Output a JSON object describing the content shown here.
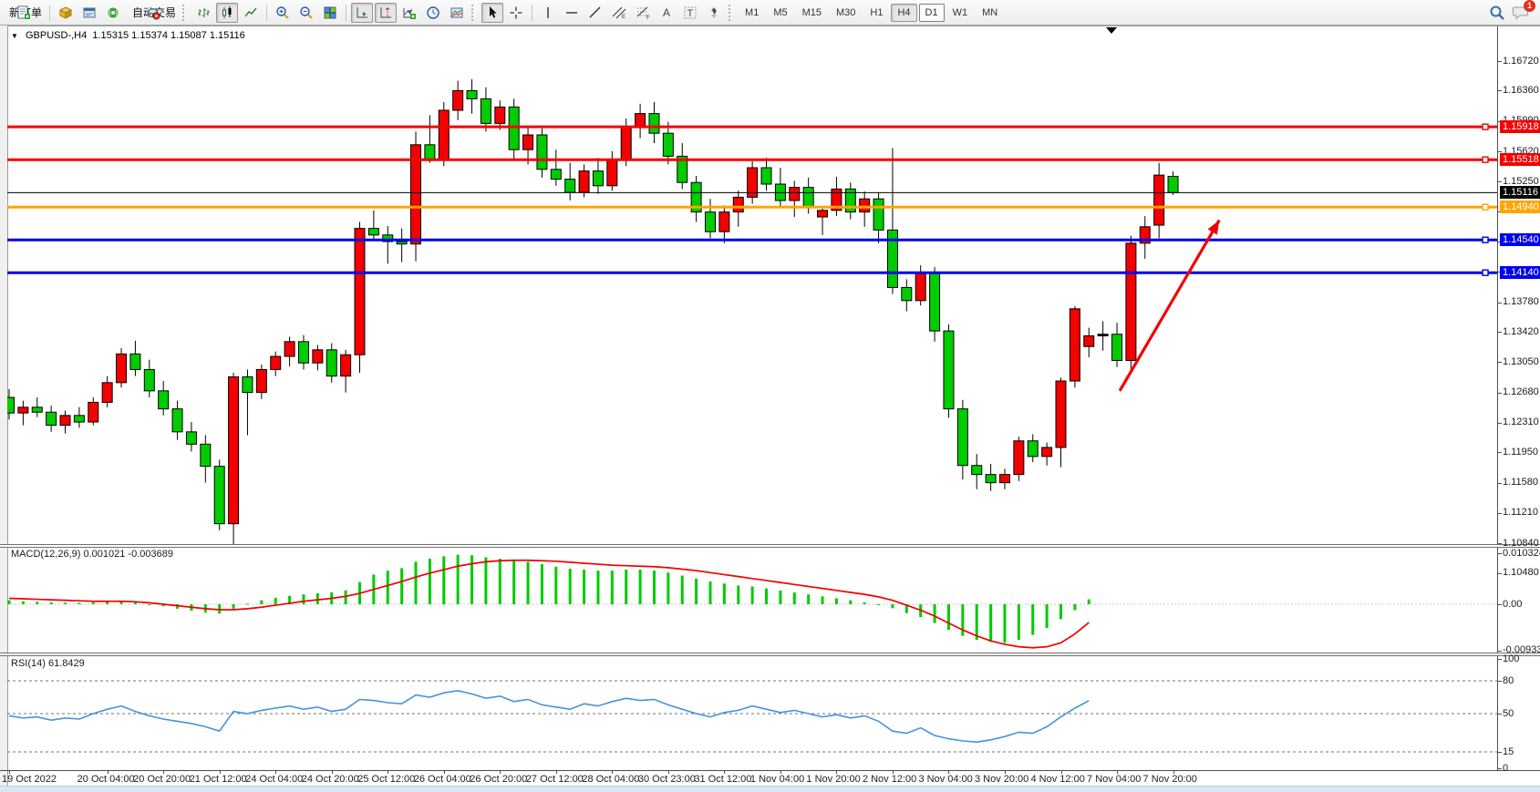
{
  "toolbar": {
    "new_order_label": "新订单",
    "autotrade_label": "自动交易",
    "timeframes": [
      "M1",
      "M5",
      "M15",
      "M30",
      "H1",
      "H4",
      "D1",
      "W1",
      "MN"
    ],
    "active_timeframe": "H4",
    "boxed_timeframe": "D1",
    "chat_badge": "1"
  },
  "chart": {
    "title": "GBPUSD-,H4",
    "ohlc_text": "1.15315 1.15374 1.15087 1.15116",
    "price_ticks": [
      "1.16720",
      "1.16360",
      "1.15990",
      "1.15620",
      "1.15250",
      "1.14890",
      "1.14520",
      "1.14150",
      "1.13780",
      "1.13420",
      "1.13050",
      "1.12680",
      "1.12310",
      "1.11950",
      "1.11580",
      "1.11210",
      "1.10840",
      "1.10480"
    ],
    "time_labels": {
      "texts": [
        "19 Oct 2022",
        "20 Oct 04:00",
        "20 Oct 20:00",
        "21 Oct 12:00",
        "24 Oct 04:00",
        "24 Oct 20:00",
        "25 Oct 12:00",
        "26 Oct 04:00",
        "26 Oct 20:00",
        "27 Oct 12:00",
        "28 Oct 04:00",
        "30 Oct 23:00",
        "31 Oct 12:00",
        "1 Nov 04:00",
        "1 Nov 20:00",
        "2 Nov 12:00",
        "3 Nov 04:00",
        "3 Nov 20:00",
        "4 Nov 12:00",
        "7 Nov 04:00",
        "7 Nov 20:00"
      ],
      "bars": [
        0,
        7,
        11,
        15,
        19,
        23,
        27,
        31,
        35,
        39,
        43,
        47,
        51,
        55,
        59,
        63,
        67,
        71,
        75,
        79,
        83
      ]
    },
    "hlines": [
      {
        "price": 1.15918,
        "label": "1.15918",
        "color": "#f40000",
        "thick": 3
      },
      {
        "price": 1.15518,
        "label": "1.15518",
        "color": "#f40000",
        "thick": 3
      },
      {
        "price": 1.15116,
        "label": "1.15116",
        "color": "#000000",
        "thick": 1
      },
      {
        "price": 1.1494,
        "label": "1.14940",
        "color": "#ffa400",
        "thick": 3
      },
      {
        "price": 1.1454,
        "label": "1.14540",
        "color": "#0000f0",
        "thick": 3
      },
      {
        "price": 1.1414,
        "label": "1.14140",
        "color": "#0000f0",
        "thick": 3
      }
    ],
    "candles": [
      [
        1.1262,
        1.1272,
        1.1235,
        1.1243
      ],
      [
        1.1243,
        1.1258,
        1.1228,
        1.125
      ],
      [
        1.125,
        1.1262,
        1.1238,
        1.1244
      ],
      [
        1.1244,
        1.1252,
        1.122,
        1.1228
      ],
      [
        1.1228,
        1.1246,
        1.1218,
        1.124
      ],
      [
        1.124,
        1.125,
        1.1225,
        1.1232
      ],
      [
        1.1232,
        1.1262,
        1.1228,
        1.1256
      ],
      [
        1.1256,
        1.1288,
        1.125,
        1.128
      ],
      [
        1.128,
        1.1322,
        1.1274,
        1.1315
      ],
      [
        1.1315,
        1.1331,
        1.1288,
        1.1296
      ],
      [
        1.1296,
        1.1308,
        1.1262,
        1.127
      ],
      [
        1.127,
        1.1282,
        1.124,
        1.1248
      ],
      [
        1.1248,
        1.1258,
        1.121,
        1.122
      ],
      [
        1.122,
        1.1232,
        1.1196,
        1.1205
      ],
      [
        1.1205,
        1.1216,
        1.1158,
        1.1178
      ],
      [
        1.1178,
        1.1186,
        1.11,
        1.1108
      ],
      [
        1.1108,
        1.1292,
        1.106,
        1.1287
      ],
      [
        1.1287,
        1.1296,
        1.1216,
        1.1268
      ],
      [
        1.1268,
        1.1302,
        1.126,
        1.1296
      ],
      [
        1.1296,
        1.1318,
        1.1288,
        1.1312
      ],
      [
        1.1312,
        1.1336,
        1.13,
        1.133
      ],
      [
        1.133,
        1.1338,
        1.1296,
        1.1304
      ],
      [
        1.1304,
        1.1326,
        1.1295,
        1.132
      ],
      [
        1.132,
        1.1328,
        1.128,
        1.1288
      ],
      [
        1.1288,
        1.132,
        1.1268,
        1.1314
      ],
      [
        1.1314,
        1.1476,
        1.1292,
        1.1468
      ],
      [
        1.1468,
        1.149,
        1.1454,
        1.146
      ],
      [
        1.146,
        1.1471,
        1.1425,
        1.1452
      ],
      [
        1.1452,
        1.1468,
        1.1427,
        1.1449
      ],
      [
        1.1449,
        1.1586,
        1.1428,
        1.157
      ],
      [
        1.157,
        1.1606,
        1.1548,
        1.1552
      ],
      [
        1.1552,
        1.1622,
        1.1544,
        1.1612
      ],
      [
        1.1612,
        1.1648,
        1.16,
        1.1636
      ],
      [
        1.1636,
        1.165,
        1.1608,
        1.1626
      ],
      [
        1.1626,
        1.164,
        1.1586,
        1.1596
      ],
      [
        1.1596,
        1.1624,
        1.1588,
        1.1616
      ],
      [
        1.1616,
        1.1626,
        1.1552,
        1.1564
      ],
      [
        1.1564,
        1.1592,
        1.1546,
        1.1582
      ],
      [
        1.1582,
        1.159,
        1.153,
        1.154
      ],
      [
        1.154,
        1.1564,
        1.152,
        1.1528
      ],
      [
        1.1528,
        1.1548,
        1.1502,
        1.1512
      ],
      [
        1.1512,
        1.1546,
        1.1506,
        1.1538
      ],
      [
        1.1538,
        1.1554,
        1.151,
        1.152
      ],
      [
        1.152,
        1.1562,
        1.1514,
        1.1552
      ],
      [
        1.1552,
        1.1602,
        1.1544,
        1.1592
      ],
      [
        1.1592,
        1.162,
        1.1578,
        1.1608
      ],
      [
        1.1608,
        1.1622,
        1.1572,
        1.1584
      ],
      [
        1.1584,
        1.1598,
        1.1546,
        1.1556
      ],
      [
        1.1556,
        1.1572,
        1.1516,
        1.1524
      ],
      [
        1.1524,
        1.1532,
        1.1476,
        1.1488
      ],
      [
        1.1488,
        1.1504,
        1.1456,
        1.1464
      ],
      [
        1.1464,
        1.1496,
        1.145,
        1.1488
      ],
      [
        1.1488,
        1.1514,
        1.147,
        1.1506
      ],
      [
        1.1506,
        1.155,
        1.1498,
        1.1542
      ],
      [
        1.1542,
        1.1554,
        1.1514,
        1.1522
      ],
      [
        1.1522,
        1.1542,
        1.1494,
        1.1502
      ],
      [
        1.1502,
        1.1526,
        1.1482,
        1.1518
      ],
      [
        1.1518,
        1.153,
        1.1486,
        1.1494
      ],
      [
        1.1482,
        1.1492,
        1.146,
        1.149
      ],
      [
        1.149,
        1.1531,
        1.1483,
        1.1516
      ],
      [
        1.1516,
        1.1524,
        1.1479,
        1.1488
      ],
      [
        1.1488,
        1.1513,
        1.147,
        1.1504
      ],
      [
        1.1504,
        1.1512,
        1.145,
        1.1466
      ],
      [
        1.1466,
        1.1566,
        1.1388,
        1.1396
      ],
      [
        1.1396,
        1.1406,
        1.1367,
        1.138
      ],
      [
        1.138,
        1.1423,
        1.1374,
        1.1413
      ],
      [
        1.1413,
        1.1421,
        1.133,
        1.1343
      ],
      [
        1.1343,
        1.1351,
        1.1237,
        1.1248
      ],
      [
        1.1248,
        1.1259,
        1.1162,
        1.1179
      ],
      [
        1.1179,
        1.1193,
        1.115,
        1.1168
      ],
      [
        1.1168,
        1.1181,
        1.1148,
        1.1158
      ],
      [
        1.1158,
        1.1175,
        1.115,
        1.1168
      ],
      [
        1.1168,
        1.1214,
        1.116,
        1.1209
      ],
      [
        1.1209,
        1.1217,
        1.1183,
        1.119
      ],
      [
        1.119,
        1.1207,
        1.1179,
        1.1201
      ],
      [
        1.1201,
        1.1286,
        1.1177,
        1.1282
      ],
      [
        1.1282,
        1.1373,
        1.1274,
        1.137
      ],
      [
        1.1324,
        1.1347,
        1.1311,
        1.1337
      ],
      [
        1.1337,
        1.1355,
        1.1319,
        1.1339
      ],
      [
        1.1339,
        1.1353,
        1.1299,
        1.1307
      ],
      [
        1.1307,
        1.1459,
        1.1294,
        1.145
      ],
      [
        1.145,
        1.1483,
        1.1431,
        1.147
      ],
      [
        1.1472,
        1.1548,
        1.1456,
        1.1533
      ],
      [
        1.15315,
        1.15374,
        1.15087,
        1.15116
      ]
    ],
    "arrow": {
      "from_bar": 79.2,
      "from_price": 1.127,
      "to_bar": 86.3,
      "to_price": 1.1478,
      "color": "#f40000"
    }
  },
  "macd": {
    "label": "MACD(12,26,9)",
    "values_text": "0.001021 -0.003689",
    "axis_ticks": [
      "0.010324",
      "0.00",
      "-0.009332"
    ],
    "histogram": [
      0.0008,
      0.0006,
      0.0005,
      0.0004,
      0.0003,
      0.0003,
      0.0004,
      0.0005,
      0.0007,
      0.0004,
      0.0,
      -0.0004,
      -0.0009,
      -0.0013,
      -0.0017,
      -0.0019,
      -0.0009,
      0.0001,
      0.0008,
      0.0013,
      0.0017,
      0.002,
      0.0022,
      0.0024,
      0.0028,
      0.0045,
      0.006,
      0.0068,
      0.0073,
      0.0086,
      0.0092,
      0.0097,
      0.01,
      0.0099,
      0.0095,
      0.0092,
      0.0088,
      0.0086,
      0.0081,
      0.0076,
      0.0072,
      0.007,
      0.0068,
      0.0068,
      0.007,
      0.007,
      0.0068,
      0.0064,
      0.0058,
      0.0052,
      0.0046,
      0.0042,
      0.0038,
      0.0036,
      0.0032,
      0.0028,
      0.0024,
      0.002,
      0.0016,
      0.0012,
      0.0008,
      0.0004,
      0.0,
      -0.0008,
      -0.0018,
      -0.0026,
      -0.0038,
      -0.0052,
      -0.0064,
      -0.0072,
      -0.0076,
      -0.0078,
      -0.0072,
      -0.0062,
      -0.0048,
      -0.003,
      -0.0012,
      0.001
    ],
    "signal": [
      0.0012,
      0.0011,
      0.001,
      0.0009,
      0.0008,
      0.0007,
      0.0006,
      0.0006,
      0.0006,
      0.0005,
      0.0003,
      0.0,
      -0.0003,
      -0.0006,
      -0.0009,
      -0.0011,
      -0.0011,
      -0.0009,
      -0.0006,
      -0.0002,
      0.0002,
      0.0006,
      0.0009,
      0.0012,
      0.0016,
      0.0022,
      0.003,
      0.0038,
      0.0046,
      0.0055,
      0.0063,
      0.007,
      0.0077,
      0.0082,
      0.0086,
      0.0088,
      0.0089,
      0.0089,
      0.0088,
      0.0087,
      0.0085,
      0.0083,
      0.0081,
      0.0079,
      0.0078,
      0.0077,
      0.0076,
      0.0074,
      0.0071,
      0.0068,
      0.0064,
      0.006,
      0.0056,
      0.0052,
      0.0048,
      0.0044,
      0.004,
      0.0036,
      0.0032,
      0.0028,
      0.0024,
      0.002,
      0.0015,
      0.0008,
      -0.0002,
      -0.0012,
      -0.0024,
      -0.0038,
      -0.0052,
      -0.0064,
      -0.0074,
      -0.0081,
      -0.0086,
      -0.0088,
      -0.0086,
      -0.0078,
      -0.006,
      -0.0037
    ]
  },
  "rsi": {
    "label": "RSI(14)",
    "value_text": "61.8429",
    "axis_ticks": [
      100,
      80,
      50,
      15,
      0
    ],
    "levels": [
      80,
      50,
      15
    ],
    "values": [
      48,
      46,
      47,
      44,
      46,
      45,
      50,
      54,
      57,
      52,
      48,
      45,
      43,
      41,
      38,
      34,
      52,
      50,
      53,
      55,
      57,
      54,
      56,
      52,
      54,
      63,
      62,
      60,
      59,
      67,
      65,
      69,
      71,
      68,
      64,
      66,
      61,
      63,
      58,
      56,
      54,
      59,
      57,
      61,
      64,
      62,
      63,
      58,
      54,
      50,
      47,
      51,
      53,
      57,
      54,
      51,
      53,
      50,
      47,
      49,
      46,
      48,
      43,
      34,
      32,
      37,
      30,
      27,
      25,
      24,
      26,
      29,
      33,
      32,
      38,
      47,
      55,
      61.84
    ],
    "line_color": "#4793d9"
  },
  "colors": {
    "bull": "#f40000",
    "bear": "#00cc00",
    "doji": "#000000",
    "macd_hist": "#00cc00",
    "macd_signal": "#f40000"
  }
}
